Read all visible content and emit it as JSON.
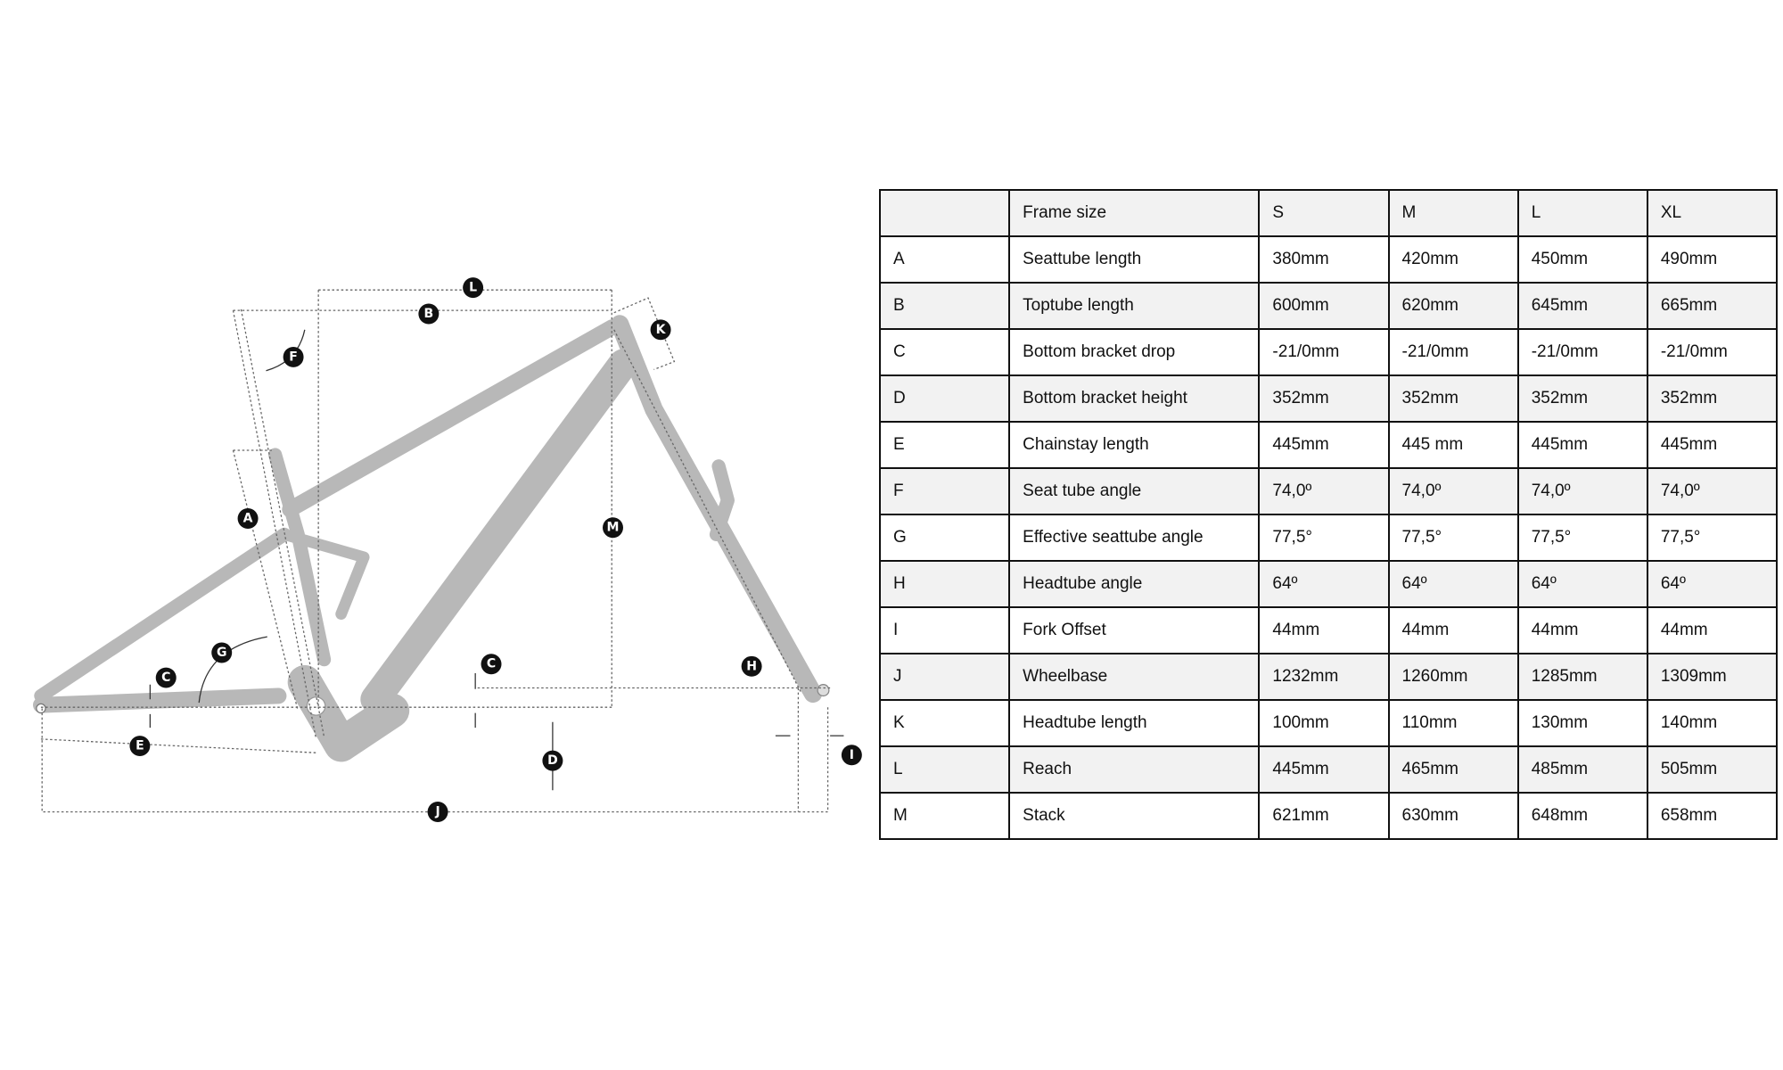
{
  "diagram": {
    "labels": [
      "A",
      "B",
      "C",
      "C",
      "D",
      "E",
      "F",
      "G",
      "H",
      "I",
      "J",
      "K",
      "L",
      "M"
    ],
    "frame_color": "#b8b8b8",
    "label_color": "#111111"
  },
  "table": {
    "header": [
      "",
      "Frame size",
      "S",
      "M",
      "L",
      "XL"
    ],
    "rows": [
      [
        "A",
        "Seattube length",
        "380mm",
        "420mm",
        "450mm",
        "490mm"
      ],
      [
        "B",
        "Toptube length",
        "600mm",
        "620mm",
        "645mm",
        "665mm"
      ],
      [
        "C",
        "Bottom bracket drop",
        "-21/0mm",
        "-21/0mm",
        "-21/0mm",
        "-21/0mm"
      ],
      [
        "D",
        "Bottom bracket height",
        "352mm",
        "352mm",
        "352mm",
        "352mm"
      ],
      [
        "E",
        "Chainstay length",
        "445mm",
        "445 mm",
        "445mm",
        "445mm"
      ],
      [
        "F",
        "Seat tube angle",
        "74,0º",
        "74,0º",
        "74,0º",
        "74,0º"
      ],
      [
        "G",
        "Effective seattube angle",
        "77,5°",
        "77,5°",
        "77,5°",
        "77,5°"
      ],
      [
        "H",
        "Headtube angle",
        "64º",
        "64º",
        "64º",
        "64º"
      ],
      [
        "I",
        "Fork Offset",
        "44mm",
        "44mm",
        "44mm",
        "44mm"
      ],
      [
        "J",
        "Wheelbase",
        "1232mm",
        "1260mm",
        "1285mm",
        "1309mm"
      ],
      [
        "K",
        "Headtube length",
        "100mm",
        "110mm",
        "130mm",
        "140mm"
      ],
      [
        "L",
        "Reach",
        "445mm",
        "465mm",
        "485mm",
        "505mm"
      ],
      [
        "M",
        "Stack",
        "621mm",
        "630mm",
        "648mm",
        "658mm"
      ]
    ]
  }
}
